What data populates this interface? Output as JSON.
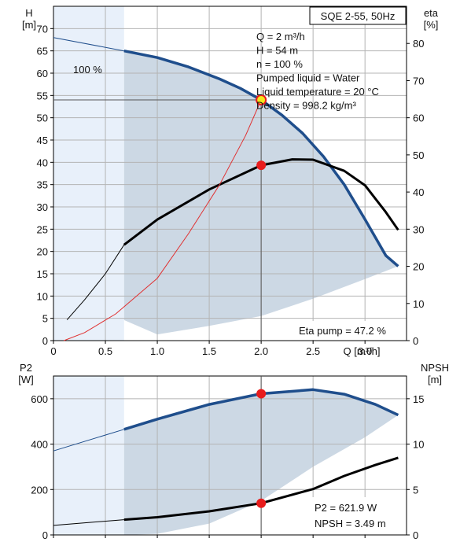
{
  "colors": {
    "pump_curve": "#1f4e8c",
    "power_curve": "#1f4e8c",
    "eta_curve": "#000000",
    "npsh_curve": "#000000",
    "system_curve": "#e03030",
    "operating_point": "#e81c1c",
    "operating_point_fill": "#f5e61c",
    "shade_dark": "#ccd8e4",
    "shade_light": "#e8f0fa",
    "grid": "#b4b4b4"
  },
  "chart_data": [
    {
      "type": "line",
      "panel": "top",
      "title": "SQE 2-55, 50Hz",
      "xlabel": "Q [m³/h]",
      "ylabel_left": [
        "H",
        "[m]"
      ],
      "ylabel_right": [
        "eta",
        "[%]"
      ],
      "xlim": [
        0,
        3.4
      ],
      "ylim_left": [
        0,
        75
      ],
      "ylim_right": [
        0,
        90
      ],
      "x_ticks": [
        {
          "v": 0,
          "label": "0"
        },
        {
          "v": 0.5,
          "label": "0.5"
        },
        {
          "v": 1.0,
          "label": "1.0"
        },
        {
          "v": 1.5,
          "label": "1.5"
        },
        {
          "v": 2.0,
          "label": "2.0"
        },
        {
          "v": 2.5,
          "label": "2.5"
        },
        {
          "v": 3.0,
          "label": "3.0"
        }
      ],
      "y_ticks_left": [
        0,
        5,
        10,
        15,
        20,
        25,
        30,
        35,
        40,
        45,
        50,
        55,
        60,
        65,
        70
      ],
      "y_ticks_right": [
        0,
        10,
        20,
        30,
        40,
        50,
        60,
        70,
        80
      ],
      "grid": true,
      "curve_label": "100 %",
      "info_lines": [
        "Q = 2 m³/h",
        "H = 54 m",
        "n = 100 %",
        "Pumped liquid = Water",
        "Liquid temperature = 20 °C",
        "Density = 998.2 kg/m³"
      ],
      "eta_note": "Eta pump = 47.2 %",
      "series": [
        {
          "axis": "left",
          "points": [
            [
              0.68,
              65
            ],
            [
              1.0,
              63.5
            ],
            [
              1.3,
              61.4
            ],
            [
              1.6,
              58.7
            ],
            [
              1.8,
              56.6
            ],
            [
              2.0,
              54
            ],
            [
              2.2,
              50.6
            ],
            [
              2.4,
              46.5
            ],
            [
              2.6,
              41.3
            ],
            [
              2.8,
              35
            ],
            [
              3.0,
              27.2
            ],
            [
              3.2,
              19.1
            ],
            [
              3.32,
              16.7
            ]
          ]
        },
        {
          "axis": "left",
          "points": [
            [
              0,
              68
            ],
            [
              0.68,
              65
            ]
          ]
        },
        {
          "axis": "right",
          "points": [
            [
              0.68,
              25.8
            ],
            [
              1.0,
              32.6
            ],
            [
              1.5,
              40.7
            ],
            [
              2.0,
              47.2
            ],
            [
              2.3,
              48.8
            ],
            [
              2.5,
              48.7
            ],
            [
              2.8,
              45.7
            ],
            [
              3.0,
              41.8
            ],
            [
              3.2,
              34.6
            ],
            [
              3.32,
              29.8
            ]
          ]
        },
        {
          "axis": "right",
          "points": [
            [
              0.13,
              5.6
            ],
            [
              0.3,
              11
            ],
            [
              0.5,
              18
            ],
            [
              0.68,
              25.8
            ]
          ]
        },
        {
          "axis": "left",
          "points": [
            [
              0.1,
              0
            ],
            [
              0.3,
              1.8
            ],
            [
              0.6,
              6
            ],
            [
              1.0,
              14
            ],
            [
              1.3,
              24
            ],
            [
              1.6,
              35
            ],
            [
              1.85,
              46
            ],
            [
              2.0,
              54
            ]
          ]
        }
      ],
      "shaded_region": {
        "x_start": 0.68,
        "upper": [
          [
            0.68,
            65
          ],
          [
            1.0,
            63.5
          ],
          [
            1.3,
            61.4
          ],
          [
            1.6,
            58.7
          ],
          [
            1.8,
            56.6
          ],
          [
            2.0,
            54
          ],
          [
            2.2,
            50.6
          ],
          [
            2.4,
            46.5
          ],
          [
            2.6,
            41.3
          ],
          [
            2.8,
            35
          ],
          [
            3.0,
            27.2
          ],
          [
            3.2,
            19.1
          ],
          [
            3.32,
            16.7
          ]
        ],
        "lower": [
          [
            3.32,
            16.7
          ],
          [
            3.0,
            13.8
          ],
          [
            2.5,
            9.4
          ],
          [
            2.0,
            5.5
          ],
          [
            1.5,
            3.3
          ],
          [
            1.0,
            1.4
          ],
          [
            0.68,
            4.6
          ]
        ]
      },
      "operating_points": [
        {
          "x": 2.0,
          "y": 54,
          "axis": "left",
          "style": "yellow"
        },
        {
          "x": 2.0,
          "y": 47.2,
          "axis": "right",
          "style": "red"
        }
      ],
      "guide_lines": [
        {
          "from": [
            0,
            54
          ],
          "to": [
            2.0,
            54
          ]
        },
        {
          "from": [
            2.0,
            54
          ],
          "to": [
            2.0,
            0
          ]
        }
      ]
    },
    {
      "type": "line",
      "panel": "bottom",
      "xlim": [
        0,
        3.4
      ],
      "ylabel_left": [
        "P2",
        "[W]"
      ],
      "ylabel_right": [
        "NPSH",
        "[m]"
      ],
      "ylim_left": [
        0,
        700
      ],
      "ylim_right": [
        0,
        17.5
      ],
      "x_ticks": [
        0,
        0.5,
        1.0,
        1.5,
        2.0,
        2.5,
        3.0
      ],
      "y_ticks_left": [
        0,
        200,
        400,
        600
      ],
      "y_ticks_right": [
        0,
        5,
        10,
        15
      ],
      "grid": true,
      "readouts": [
        "P2 = 621.9 W",
        "NPSH = 3.49 m"
      ],
      "series": [
        {
          "axis": "left",
          "points": [
            [
              0.68,
              465
            ],
            [
              1.0,
              510
            ],
            [
              1.5,
              575
            ],
            [
              2.0,
              622
            ],
            [
              2.5,
              640
            ],
            [
              2.8,
              620
            ],
            [
              3.1,
              575
            ],
            [
              3.32,
              528
            ]
          ]
        },
        {
          "axis": "left",
          "points": [
            [
              0,
              370
            ],
            [
              0.68,
              465
            ]
          ]
        },
        {
          "axis": "right",
          "points": [
            [
              0.68,
              1.68
            ],
            [
              1.0,
              1.95
            ],
            [
              1.5,
              2.6
            ],
            [
              2.0,
              3.49
            ],
            [
              2.5,
              5.05
            ],
            [
              2.8,
              6.5
            ],
            [
              3.1,
              7.7
            ],
            [
              3.32,
              8.5
            ]
          ]
        },
        {
          "axis": "right",
          "points": [
            [
              0,
              1.05
            ],
            [
              0.68,
              1.68
            ]
          ]
        }
      ],
      "shaded_region": {
        "x_start": 0.68,
        "upper": [
          [
            0.68,
            465
          ],
          [
            1.0,
            510
          ],
          [
            1.5,
            575
          ],
          [
            2.0,
            622
          ],
          [
            2.5,
            640
          ],
          [
            2.8,
            620
          ],
          [
            3.1,
            575
          ],
          [
            3.32,
            528
          ]
        ],
        "lower": [
          [
            3.32,
            528
          ],
          [
            3.0,
            430
          ],
          [
            2.5,
            300
          ],
          [
            2.0,
            150
          ],
          [
            1.5,
            50
          ],
          [
            1.0,
            5
          ],
          [
            0.68,
            0
          ]
        ]
      },
      "operating_points": [
        {
          "x": 2.0,
          "y": 621.9,
          "axis": "left",
          "style": "red"
        },
        {
          "x": 2.0,
          "y": 3.49,
          "axis": "right",
          "style": "red"
        }
      ],
      "guide_lines": [
        {
          "from": [
            2.0,
            0
          ],
          "to": [
            2.0,
            700
          ]
        }
      ]
    }
  ]
}
